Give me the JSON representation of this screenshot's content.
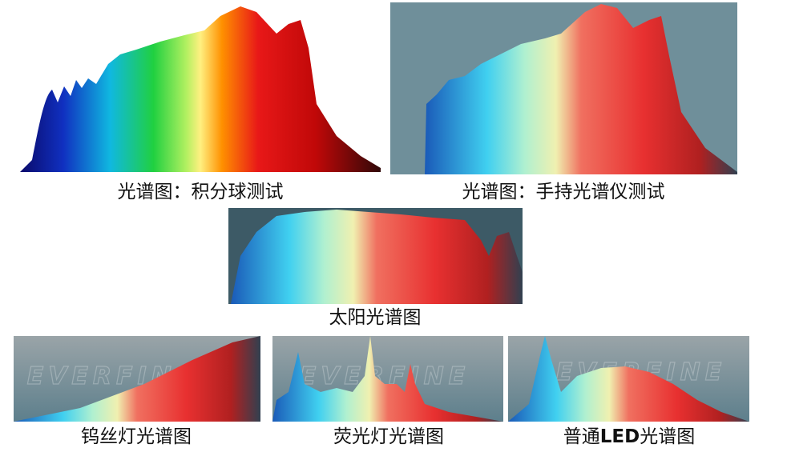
{
  "panels": [
    {
      "caption": "光谱图：积分球测试"
    },
    {
      "caption": "光谱图：手持光谱仪测试"
    },
    {
      "caption": "太阳光谱图"
    },
    {
      "caption": "钨丝灯光谱图"
    },
    {
      "caption": "荧光灯光谱图"
    },
    {
      "caption_parts": [
        "普通",
        "LED",
        "光谱图"
      ]
    }
  ],
  "watermark": "EVERFINE"
}
